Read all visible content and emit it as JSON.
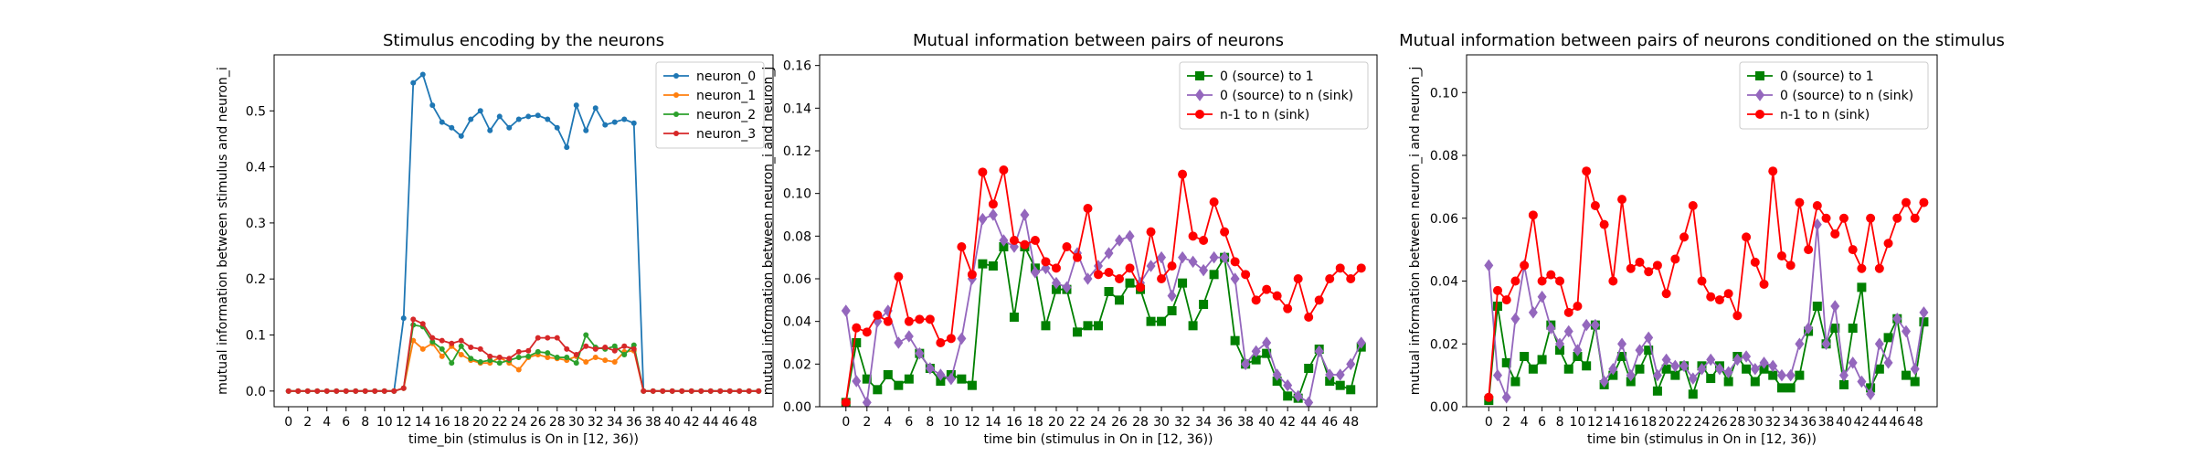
{
  "chart_data": [
    {
      "type": "line",
      "title": "Stimulus encoding by the neurons",
      "xlabel": "time_bin (stimulus is On in [12, 36))",
      "ylabel": "mutual information between stimulus and neuron_i",
      "xlim": [
        -1.5,
        50.5
      ],
      "ylim": [
        -0.028,
        0.6
      ],
      "xticks": [
        0,
        2,
        4,
        6,
        8,
        10,
        12,
        14,
        16,
        18,
        20,
        22,
        24,
        26,
        28,
        30,
        32,
        34,
        36,
        38,
        40,
        42,
        44,
        46,
        48
      ],
      "yticks": [
        0.0,
        0.1,
        0.2,
        0.3,
        0.4,
        0.5
      ],
      "ytick_format": 1,
      "legend": "top-right",
      "x": [
        0,
        1,
        2,
        3,
        4,
        5,
        6,
        7,
        8,
        9,
        10,
        11,
        12,
        13,
        14,
        15,
        16,
        17,
        18,
        19,
        20,
        21,
        22,
        23,
        24,
        25,
        26,
        27,
        28,
        29,
        30,
        31,
        32,
        33,
        34,
        35,
        36,
        37,
        38,
        39,
        40,
        41,
        42,
        43,
        44,
        45,
        46,
        47,
        48,
        49
      ],
      "series": [
        {
          "name": "neuron_0",
          "color": "#1f77b4",
          "marker": "dot",
          "values": [
            0,
            0,
            0,
            0,
            0,
            0,
            0,
            0,
            0,
            0,
            0,
            0,
            0.13,
            0.55,
            0.565,
            0.51,
            0.48,
            0.47,
            0.455,
            0.485,
            0.5,
            0.465,
            0.49,
            0.47,
            0.485,
            0.49,
            0.492,
            0.485,
            0.47,
            0.435,
            0.51,
            0.465,
            0.505,
            0.475,
            0.48,
            0.485,
            0.478,
            0,
            0,
            0,
            0,
            0,
            0,
            0,
            0,
            0,
            0,
            0,
            0,
            0
          ]
        },
        {
          "name": "neuron_1",
          "color": "#ff7f0e",
          "marker": "dot",
          "values": [
            0,
            0,
            0,
            0,
            0,
            0,
            0,
            0,
            0,
            0,
            0,
            0,
            0.005,
            0.09,
            0.075,
            0.085,
            0.062,
            0.08,
            0.065,
            0.055,
            0.05,
            0.05,
            0.06,
            0.05,
            0.038,
            0.06,
            0.065,
            0.06,
            0.058,
            0.055,
            0.062,
            0.052,
            0.06,
            0.055,
            0.052,
            0.07,
            0.072,
            0,
            0,
            0,
            0,
            0,
            0,
            0,
            0,
            0,
            0,
            0,
            0,
            0
          ]
        },
        {
          "name": "neuron_2",
          "color": "#2ca02c",
          "marker": "dot",
          "values": [
            0,
            0,
            0,
            0,
            0,
            0,
            0,
            0,
            0,
            0,
            0,
            0,
            0.005,
            0.118,
            0.115,
            0.088,
            0.075,
            0.05,
            0.08,
            0.058,
            0.052,
            0.055,
            0.05,
            0.055,
            0.06,
            0.062,
            0.07,
            0.068,
            0.06,
            0.06,
            0.05,
            0.1,
            0.078,
            0.075,
            0.08,
            0.065,
            0.082,
            0,
            0,
            0,
            0,
            0,
            0,
            0,
            0,
            0,
            0,
            0,
            0,
            0
          ]
        },
        {
          "name": "neuron_3",
          "color": "#d62728",
          "marker": "dot",
          "values": [
            0,
            0,
            0,
            0,
            0,
            0,
            0,
            0,
            0,
            0,
            0,
            0,
            0.005,
            0.128,
            0.12,
            0.095,
            0.09,
            0.085,
            0.09,
            0.078,
            0.075,
            0.062,
            0.06,
            0.058,
            0.07,
            0.072,
            0.095,
            0.095,
            0.095,
            0.075,
            0.065,
            0.08,
            0.075,
            0.078,
            0.072,
            0.08,
            0.075,
            0,
            0,
            0,
            0,
            0,
            0,
            0,
            0,
            0,
            0,
            0,
            0,
            0
          ]
        }
      ]
    },
    {
      "type": "line",
      "title": "Mutual information between pairs of neurons",
      "xlabel": "time bin (stimulus in On in [12, 36))",
      "ylabel": "mutual information between neuron_i and neuron_j",
      "xlim": [
        -2.5,
        50.5
      ],
      "ylim": [
        0,
        0.165
      ],
      "xticks": [
        0,
        2,
        4,
        6,
        8,
        10,
        12,
        14,
        16,
        18,
        20,
        22,
        24,
        26,
        28,
        30,
        32,
        34,
        36,
        38,
        40,
        42,
        44,
        46,
        48
      ],
      "yticks": [
        0.0,
        0.02,
        0.04,
        0.06,
        0.08,
        0.1,
        0.12,
        0.14,
        0.16
      ],
      "ytick_format": 2,
      "legend": "top-right",
      "x": [
        0,
        1,
        2,
        3,
        4,
        5,
        6,
        7,
        8,
        9,
        10,
        11,
        12,
        13,
        14,
        15,
        16,
        17,
        18,
        19,
        20,
        21,
        22,
        23,
        24,
        25,
        26,
        27,
        28,
        29,
        30,
        31,
        32,
        33,
        34,
        35,
        36,
        37,
        38,
        39,
        40,
        41,
        42,
        43,
        44,
        45,
        46,
        47,
        48,
        49
      ],
      "series": [
        {
          "name": "0 (source) to 1",
          "color": "#008000",
          "marker": "square",
          "values": [
            0.002,
            0.03,
            0.013,
            0.008,
            0.015,
            0.01,
            0.013,
            0.025,
            0.018,
            0.012,
            0.015,
            0.013,
            0.01,
            0.067,
            0.066,
            0.075,
            0.042,
            0.075,
            0.065,
            0.038,
            0.055,
            0.055,
            0.035,
            0.038,
            0.038,
            0.054,
            0.05,
            0.058,
            0.055,
            0.04,
            0.04,
            0.045,
            0.058,
            0.038,
            0.048,
            0.062,
            0.07,
            0.031,
            0.02,
            0.022,
            0.025,
            0.012,
            0.005,
            0.004,
            0.018,
            0.027,
            0.012,
            0.01,
            0.008,
            0.028
          ]
        },
        {
          "name": "0 (source) to n (sink)",
          "color": "#9467bd",
          "marker": "diamond",
          "values": [
            0.045,
            0.012,
            0.002,
            0.04,
            0.045,
            0.03,
            0.033,
            0.025,
            0.018,
            0.015,
            0.013,
            0.032,
            0.06,
            0.088,
            0.09,
            0.078,
            0.075,
            0.09,
            0.063,
            0.065,
            0.058,
            0.056,
            0.072,
            0.06,
            0.066,
            0.072,
            0.078,
            0.08,
            0.058,
            0.066,
            0.07,
            0.052,
            0.07,
            0.068,
            0.064,
            0.07,
            0.07,
            0.06,
            0.02,
            0.026,
            0.03,
            0.015,
            0.01,
            0.005,
            0.002,
            0.026,
            0.015,
            0.015,
            0.02,
            0.03
          ]
        },
        {
          "name": "n-1 to n (sink)",
          "color": "#ff0000",
          "marker": "circle",
          "values": [
            0.002,
            0.037,
            0.035,
            0.043,
            0.04,
            0.061,
            0.04,
            0.041,
            0.041,
            0.03,
            0.032,
            0.075,
            0.062,
            0.11,
            0.095,
            0.111,
            0.078,
            0.076,
            0.078,
            0.068,
            0.065,
            0.075,
            0.07,
            0.093,
            0.062,
            0.063,
            0.06,
            0.065,
            0.056,
            0.082,
            0.06,
            0.066,
            0.109,
            0.08,
            0.078,
            0.096,
            0.082,
            0.068,
            0.062,
            0.05,
            0.055,
            0.052,
            0.046,
            0.06,
            0.042,
            0.05,
            0.06,
            0.065,
            0.06,
            0.065
          ]
        }
      ]
    },
    {
      "type": "line",
      "title": "Mutual information between pairs of neurons conditioned on the stimulus",
      "xlabel": "time bin (stimulus in On in [12, 36))",
      "ylabel": "mutual information between neuron_i and neuron_j",
      "xlim": [
        -2.5,
        50.5
      ],
      "ylim": [
        0,
        0.112
      ],
      "xticks": [
        0,
        2,
        4,
        6,
        8,
        10,
        12,
        14,
        16,
        18,
        20,
        22,
        24,
        26,
        28,
        30,
        32,
        34,
        36,
        38,
        40,
        42,
        44,
        46,
        48
      ],
      "yticks": [
        0.0,
        0.02,
        0.04,
        0.06,
        0.08,
        0.1
      ],
      "ytick_format": 2,
      "legend": "top-right",
      "x": [
        0,
        1,
        2,
        3,
        4,
        5,
        6,
        7,
        8,
        9,
        10,
        11,
        12,
        13,
        14,
        15,
        16,
        17,
        18,
        19,
        20,
        21,
        22,
        23,
        24,
        25,
        26,
        27,
        28,
        29,
        30,
        31,
        32,
        33,
        34,
        35,
        36,
        37,
        38,
        39,
        40,
        41,
        42,
        43,
        44,
        45,
        46,
        47,
        48,
        49
      ],
      "series": [
        {
          "name": "0 (source) to 1",
          "color": "#008000",
          "marker": "square",
          "values": [
            0.002,
            0.032,
            0.014,
            0.008,
            0.016,
            0.012,
            0.015,
            0.026,
            0.018,
            0.012,
            0.016,
            0.013,
            0.026,
            0.007,
            0.01,
            0.016,
            0.008,
            0.012,
            0.018,
            0.005,
            0.012,
            0.01,
            0.013,
            0.004,
            0.013,
            0.009,
            0.013,
            0.008,
            0.016,
            0.012,
            0.008,
            0.012,
            0.01,
            0.006,
            0.006,
            0.01,
            0.024,
            0.032,
            0.02,
            0.025,
            0.007,
            0.025,
            0.038,
            0.006,
            0.012,
            0.022,
            0.028,
            0.01,
            0.008,
            0.027
          ]
        },
        {
          "name": "0 (source) to n (sink)",
          "color": "#9467bd",
          "marker": "diamond",
          "values": [
            0.045,
            0.01,
            0.003,
            0.028,
            0.045,
            0.03,
            0.035,
            0.025,
            0.02,
            0.024,
            0.018,
            0.026,
            0.026,
            0.008,
            0.012,
            0.02,
            0.01,
            0.018,
            0.022,
            0.01,
            0.015,
            0.013,
            0.013,
            0.009,
            0.012,
            0.015,
            0.012,
            0.011,
            0.015,
            0.016,
            0.012,
            0.014,
            0.013,
            0.01,
            0.01,
            0.02,
            0.025,
            0.058,
            0.02,
            0.032,
            0.01,
            0.014,
            0.008,
            0.004,
            0.02,
            0.014,
            0.028,
            0.024,
            0.012,
            0.03
          ]
        },
        {
          "name": "n-1 to n (sink)",
          "color": "#ff0000",
          "marker": "circle",
          "values": [
            0.003,
            0.037,
            0.034,
            0.04,
            0.045,
            0.061,
            0.04,
            0.042,
            0.04,
            0.03,
            0.032,
            0.075,
            0.064,
            0.058,
            0.04,
            0.066,
            0.044,
            0.046,
            0.043,
            0.045,
            0.036,
            0.047,
            0.054,
            0.064,
            0.04,
            0.035,
            0.034,
            0.036,
            0.029,
            0.054,
            0.046,
            0.039,
            0.075,
            0.048,
            0.045,
            0.065,
            0.05,
            0.064,
            0.06,
            0.055,
            0.06,
            0.05,
            0.044,
            0.06,
            0.044,
            0.052,
            0.06,
            0.065,
            0.06,
            0.065
          ]
        }
      ]
    }
  ]
}
